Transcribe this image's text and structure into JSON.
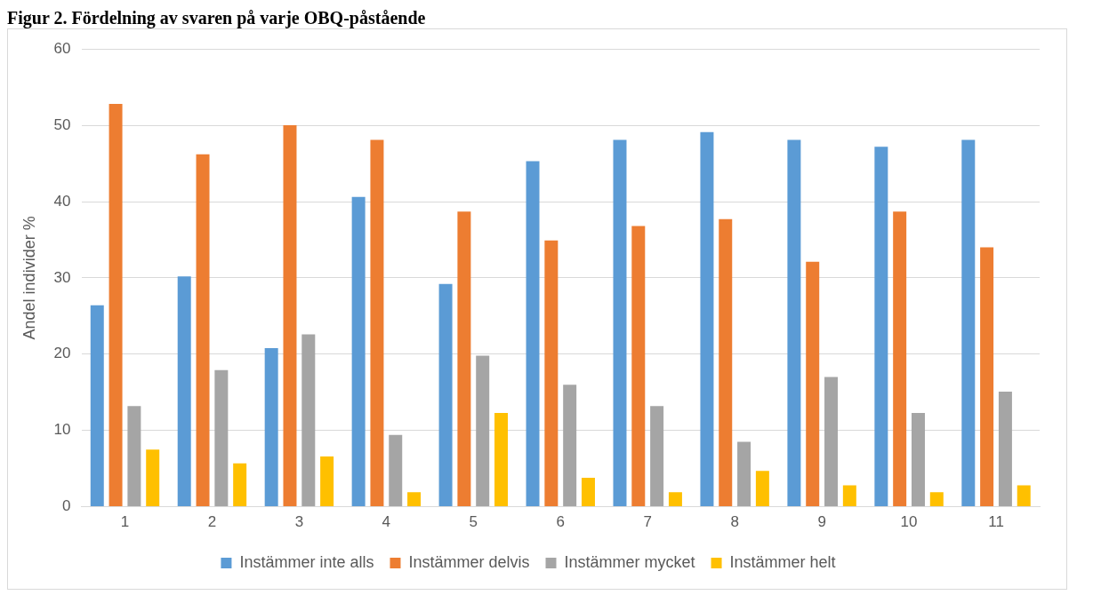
{
  "chart_data": {
    "type": "bar",
    "title": "Figur 2. Fördelning av svaren på varje OBQ-påstående",
    "ylabel": "Andel individer %",
    "categories": [
      "1",
      "2",
      "3",
      "4",
      "5",
      "6",
      "7",
      "8",
      "9",
      "10",
      "11"
    ],
    "ylim": [
      0,
      60
    ],
    "yticks": [
      0,
      10,
      20,
      30,
      40,
      50,
      60
    ],
    "grid": "y",
    "legend": "bottom",
    "series": [
      {
        "name": "Instämmer inte alls",
        "color": "#5b9bd5",
        "values": [
          26.4,
          30.2,
          20.8,
          40.6,
          29.2,
          45.3,
          48.1,
          49.1,
          48.1,
          47.2,
          48.1
        ]
      },
      {
        "name": "Instämmer delvis",
        "color": "#ed7d31",
        "values": [
          52.8,
          46.2,
          50.0,
          48.1,
          38.7,
          34.9,
          36.8,
          37.7,
          32.1,
          38.7,
          34.0
        ]
      },
      {
        "name": "Instämmer mycket",
        "color": "#a5a5a5",
        "values": [
          13.2,
          17.9,
          22.6,
          9.4,
          19.8,
          16.0,
          13.2,
          8.5,
          17.0,
          12.3,
          15.1
        ]
      },
      {
        "name": "Instämmer helt",
        "color": "#ffc000",
        "values": [
          7.5,
          5.7,
          6.6,
          1.9,
          12.3,
          3.8,
          1.9,
          4.7,
          2.8,
          1.9,
          2.8
        ]
      }
    ]
  }
}
